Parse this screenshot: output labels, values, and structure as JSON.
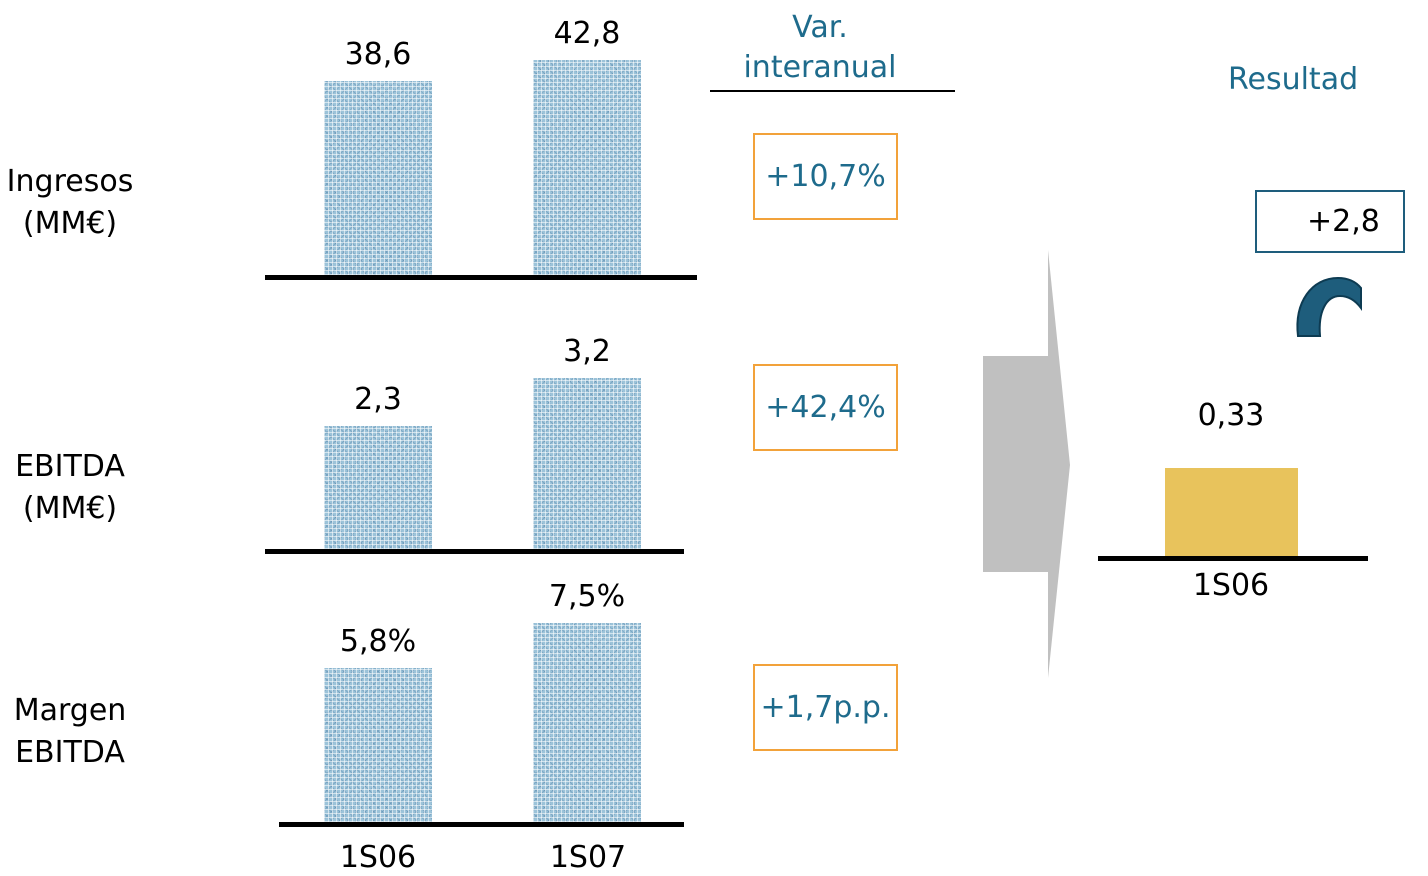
{
  "header": {
    "var_line1": "Var.",
    "var_line2": "interanual"
  },
  "right_panel": {
    "title": "Resultad",
    "change_label": "+2,8",
    "value_1s06": "0,33",
    "tick_1s06": "1S06",
    "bar_color": "#e8c35c",
    "accent_color": "#1e5d7c"
  },
  "chart_data": [
    {
      "type": "bar",
      "title": "Ingresos (MM€)",
      "label_lines": [
        "Ingresos",
        "(MM€)"
      ],
      "categories": [
        "1S06",
        "1S07"
      ],
      "values": [
        38.6,
        42.8
      ],
      "value_labels": [
        "38,6",
        "42,8"
      ],
      "variation": "+10,7%"
    },
    {
      "type": "bar",
      "title": "EBITDA (MM€)",
      "label_lines": [
        "EBITDA",
        "(MM€)"
      ],
      "categories": [
        "1S06",
        "1S07"
      ],
      "values": [
        2.3,
        3.2
      ],
      "value_labels": [
        "2,3",
        "3,2"
      ],
      "variation": "+42,4%"
    },
    {
      "type": "bar",
      "title": "Margen EBITDA",
      "label_lines": [
        "Margen",
        "EBITDA"
      ],
      "categories": [
        "1S06",
        "1S07"
      ],
      "values": [
        5.8,
        7.5
      ],
      "value_labels": [
        "5,8%",
        "7,5%"
      ],
      "variation": "+1,7p.p."
    }
  ],
  "ticks": [
    "1S06",
    "1S07"
  ],
  "colors": {
    "bar": "#9cc3d9",
    "variation_border": "#f2a23a",
    "variation_text": "#1e6b8c",
    "arrow": "#c0c0c0"
  }
}
